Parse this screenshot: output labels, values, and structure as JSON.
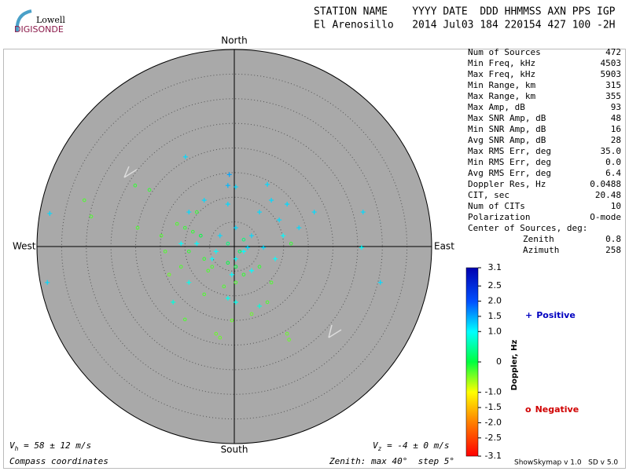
{
  "header": {
    "logo_top": "Lowell",
    "logo_bottom": "DIGISONDE",
    "line1": "STATION NAME    YYYY DATE  DDD HHMMSS AXN PPS IGP",
    "line2": "El Arenosillo   2014 Jul03 184 220154 427 100 -2H"
  },
  "stats": {
    "rows": [
      [
        "Num of Sources",
        "472"
      ],
      [
        "Min Freq, kHz",
        "4503"
      ],
      [
        "Max Freq, kHz",
        "5903"
      ],
      [
        "Min Range, km",
        "315"
      ],
      [
        "Max Range, km",
        "355"
      ],
      [
        "Max Amp, dB",
        "93"
      ],
      [
        "Max SNR Amp, dB",
        "48"
      ],
      [
        "Min SNR Amp, dB",
        "16"
      ],
      [
        "Avg SNR Amp, dB",
        "28"
      ],
      [
        "Max RMS Err, deg",
        "35.0"
      ],
      [
        "Min RMS Err, deg",
        "0.0"
      ],
      [
        "Avg RMS Err, deg",
        "6.4"
      ],
      [
        "Doppler Res, Hz",
        "0.0488"
      ],
      [
        "CIT, sec",
        "20.48"
      ],
      [
        "Num of CITs",
        "10"
      ],
      [
        "Polarization",
        "O-mode"
      ]
    ],
    "center_title": "Center of Sources, deg:",
    "center_rows": [
      [
        "Zenith",
        "0.8"
      ],
      [
        "Azimuth",
        "258"
      ]
    ]
  },
  "chart_data": {
    "type": "skymap",
    "north": "North",
    "south": "South",
    "west": "West",
    "east": "East",
    "xlim": [
      -40,
      40
    ],
    "ylim": [
      -40,
      40
    ],
    "series": [
      {
        "name": "Positive",
        "marker": "+",
        "legend_color": "#0000c0",
        "x": [
          -9.9,
          -37.4,
          -37.9,
          26.1,
          29.6,
          25.8,
          -1.0,
          -1.3,
          0.3,
          7.5,
          5.1,
          9.1,
          9.9,
          3.5,
          1.9,
          0.3,
          2.7,
          5.9,
          8.3,
          0.3,
          -2.9,
          -3.7,
          -7.6,
          -9.2,
          -6.1,
          -10.8,
          3.5,
          -0.5,
          -1.3,
          0.3,
          -12.4,
          -9.2,
          5.1,
          -4.5,
          -1.3,
          10.7,
          13.1,
          16.2,
          6.7
        ],
        "y": [
          18.2,
          6.7,
          -7.3,
          7.0,
          -7.3,
          -0.2,
          14.6,
          12.4,
          12.1,
          9.4,
          7.0,
          5.4,
          2.2,
          2.2,
          -1.0,
          -2.5,
          -0.2,
          -0.2,
          -2.5,
          3.8,
          2.2,
          -1.0,
          0.6,
          7.0,
          9.4,
          0.6,
          -4.9,
          -5.7,
          -10.5,
          -11.3,
          -11.3,
          -7.3,
          -12.1,
          -2.5,
          8.6,
          8.6,
          3.8,
          7.0,
          12.6
        ],
        "doppler": [
          1.2,
          1.2,
          1.2,
          1.2,
          1.2,
          1.0,
          1.5,
          1.4,
          1.2,
          1.2,
          1.2,
          1.2,
          1.0,
          1.2,
          1.0,
          1.0,
          1.2,
          1.2,
          1.0,
          1.2,
          1.2,
          1.0,
          1.0,
          1.2,
          1.2,
          1.0,
          1.0,
          1.0,
          0.9,
          0.9,
          0.8,
          0.9,
          0.8,
          1.0,
          1.2,
          1.2,
          1.2,
          1.2,
          1.2
        ]
      },
      {
        "name": "Negative",
        "marker": "o",
        "legend_color": "#d00000",
        "x": [
          -29.0,
          -30.4,
          -20.1,
          -17.2,
          -19.6,
          -10.0,
          -3.7,
          -2.9,
          10.7,
          11.1,
          -6.8,
          -6.1,
          -4.5,
          -10.8,
          -13.2,
          -9.2,
          -14.0,
          -8.4,
          0.3,
          0.3,
          -2.1,
          1.9,
          5.1,
          6.7,
          7.5,
          3.5,
          -0.5,
          -6.1,
          -10.0,
          -7.6,
          -5.3,
          1.1,
          -1.3,
          -11.6,
          -14.8,
          -1.3,
          1.9,
          11.5
        ],
        "y": [
          6.1,
          9.4,
          12.4,
          11.5,
          3.8,
          -14.8,
          -17.7,
          -18.5,
          -17.7,
          -18.9,
          2.2,
          -2.5,
          -4.1,
          -4.1,
          -5.7,
          -1.0,
          -1.0,
          3.0,
          -4.1,
          -7.3,
          -8.1,
          -5.7,
          -4.1,
          -11.3,
          -7.3,
          -13.7,
          -15.0,
          -9.7,
          3.8,
          7.0,
          -4.9,
          -1.0,
          -3.3,
          4.6,
          2.2,
          0.6,
          1.4,
          0.6
        ],
        "doppler": [
          -0.3,
          -0.3,
          -0.2,
          -0.2,
          -0.3,
          -0.3,
          -0.4,
          -0.4,
          -0.4,
          -0.4,
          0.0,
          -0.2,
          -0.3,
          -0.3,
          -0.4,
          -0.2,
          -0.3,
          -0.2,
          0.0,
          -0.3,
          -0.3,
          -0.2,
          -0.2,
          -0.3,
          -0.3,
          -0.4,
          -0.4,
          -0.3,
          -0.2,
          -0.2,
          -0.3,
          0.2,
          0.0,
          -0.3,
          -0.3,
          0.3,
          0.3,
          -0.2
        ]
      }
    ],
    "colorbar": {
      "label": "Doppler, Hz",
      "clim": [
        -3.1,
        3.1
      ],
      "ticks": [
        3.1,
        2.5,
        {
          "value": 2,
          "label": "2.0"
        },
        1.5,
        {
          "value": 1,
          "label": "1.0"
        },
        0,
        {
          "value": -1,
          "label": "-1.0"
        },
        -1.5,
        {
          "value": -2,
          "label": "-2.0"
        },
        -2.5,
        -3.1
      ]
    }
  },
  "footer": {
    "vh_symbol": "V",
    "vh_sub": "h",
    "vh_text": " = 58 ± 12 m/s",
    "vz_symbol": "V",
    "vz_sub": "z",
    "vz_text": " = -4 ± 0 m/s",
    "coords": "Compass coordinates",
    "zenith": "Zenith: max 40°  step 5°",
    "version": "ShowSkymap v 1.0   SD v 5.0"
  }
}
